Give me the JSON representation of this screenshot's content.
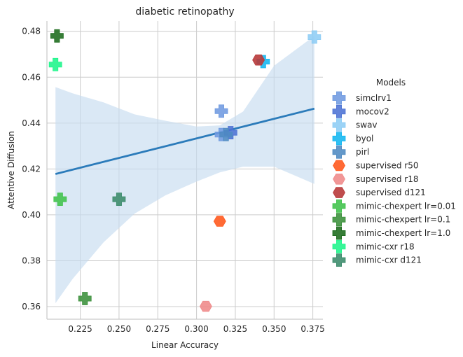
{
  "chart_data": {
    "type": "scatter",
    "title": "diabetic retinopathy",
    "xlabel": "Linear Accuracy",
    "ylabel": "Attentive Diffusion",
    "xlim": [
      0.2035,
      0.3815
    ],
    "ylim": [
      0.3545,
      0.4845
    ],
    "xticks": [
      0.225,
      0.25,
      0.275,
      0.3,
      0.325,
      0.35,
      0.375
    ],
    "xtick_labels": [
      "0.225",
      "0.250",
      "0.275",
      "0.300",
      "0.325",
      "0.350",
      "0.375"
    ],
    "yticks": [
      0.36,
      0.38,
      0.4,
      0.42,
      0.44,
      0.46,
      0.48
    ],
    "ytick_labels": [
      "0.36",
      "0.38",
      "0.40",
      "0.42",
      "0.44",
      "0.46",
      "0.48"
    ],
    "grid": true,
    "legend_title": "Models",
    "legend_position": "right",
    "regression": {
      "color": "#2b7bba",
      "band_color": "#c6dbef",
      "x": [
        0.209,
        0.376
      ],
      "y": [
        0.4178,
        0.4463
      ],
      "band": {
        "x": [
          0.209,
          0.22,
          0.24,
          0.26,
          0.28,
          0.3,
          0.315,
          0.33,
          0.35,
          0.376
        ],
        "upper": [
          0.4557,
          0.453,
          0.449,
          0.4438,
          0.441,
          0.4385,
          0.439,
          0.445,
          0.465,
          0.478
        ],
        "lower": [
          0.3615,
          0.372,
          0.388,
          0.4005,
          0.4085,
          0.4145,
          0.4185,
          0.421,
          0.421,
          0.4135
        ]
      }
    },
    "series": [
      {
        "name": "simclrv1",
        "marker": "plus",
        "color": "#6f9ae0",
        "points": [
          [
            0.316,
            0.4452
          ],
          [
            0.316,
            0.435
          ]
        ]
      },
      {
        "name": "mocov2",
        "marker": "plus",
        "color": "#4c72d4",
        "points": [
          [
            0.322,
            0.4358
          ]
        ]
      },
      {
        "name": "swav",
        "marker": "plus",
        "color": "#8ecdf5",
        "points": [
          [
            0.376,
            0.4775
          ]
        ]
      },
      {
        "name": "byol",
        "marker": "plus",
        "color": "#12b6f0",
        "points": [
          [
            0.343,
            0.4668
          ]
        ]
      },
      {
        "name": "pirl",
        "marker": "plus",
        "color": "#4f8ac2",
        "points": [
          [
            0.319,
            0.435
          ]
        ]
      },
      {
        "name": "supervised r50",
        "marker": "hexagon",
        "color": "#ff5a1f",
        "points": [
          [
            0.315,
            0.3972
          ]
        ]
      },
      {
        "name": "supervised r18",
        "marker": "hexagon",
        "color": "#f08c8c",
        "points": [
          [
            0.306,
            0.3601
          ]
        ]
      },
      {
        "name": "supervised d121",
        "marker": "hexagon",
        "color": "#b83a3a",
        "points": [
          [
            0.34,
            0.4675
          ]
        ]
      },
      {
        "name": "mimic-chexpert lr=0.01",
        "marker": "plus",
        "color": "#3fc24a",
        "points": [
          [
            0.212,
            0.4068
          ]
        ]
      },
      {
        "name": "mimic-chexpert lr=0.1",
        "marker": "plus",
        "color": "#3a8f3a",
        "points": [
          [
            0.228,
            0.3635
          ]
        ]
      },
      {
        "name": "mimic-chexpert lr=1.0",
        "marker": "plus",
        "color": "#1b6b1b",
        "points": [
          [
            0.21,
            0.478
          ]
        ]
      },
      {
        "name": "mimic-cxr r18",
        "marker": "plus",
        "color": "#1cf58a",
        "points": [
          [
            0.209,
            0.4655
          ]
        ]
      },
      {
        "name": "mimic-cxr d121",
        "marker": "plus",
        "color": "#3a8a6a",
        "points": [
          [
            0.25,
            0.4068
          ]
        ]
      }
    ]
  }
}
